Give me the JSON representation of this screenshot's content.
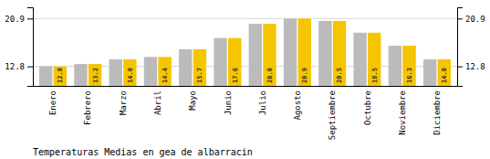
{
  "chart_data": {
    "type": "bar",
    "title": "Temperaturas Medias en gea de albarracin",
    "categories": [
      "Enero",
      "Febrero",
      "Marzo",
      "Abril",
      "Mayo",
      "Junio",
      "Julio",
      "Agosto",
      "Septiembre",
      "Octubre",
      "Noviembre",
      "Diciembre"
    ],
    "series": [
      {
        "color": "#BBBBBB",
        "values": [
          12.8,
          13.2,
          14.0,
          14.4,
          15.7,
          17.6,
          20.0,
          20.9,
          20.5,
          18.5,
          16.3,
          14.0
        ]
      },
      {
        "color": "#F5C500",
        "values": [
          12.8,
          13.2,
          14.0,
          14.4,
          15.7,
          17.6,
          20.0,
          20.9,
          20.5,
          18.5,
          16.3,
          14.0
        ],
        "data_labels": true,
        "value_labels": [
          "12.8",
          "13.2",
          "14.0",
          "14.4",
          "15.7",
          "17.6",
          "20.0",
          "20.9",
          "20.5",
          "18.5",
          "16.3",
          "14.0"
        ]
      }
    ],
    "ylim": [
      9.5,
      22.8
    ],
    "yticks": [
      12.8,
      20.9
    ],
    "y2lim": [
      9.5,
      22.8
    ],
    "y2ticks": [
      12.8,
      20.9
    ],
    "grid": true
  }
}
